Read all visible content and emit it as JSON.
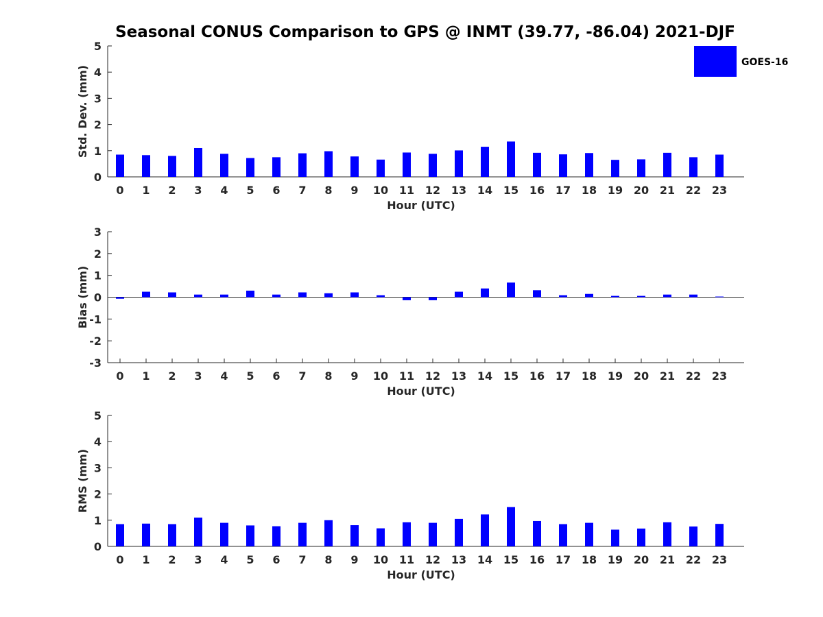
{
  "figure": {
    "title": "Seasonal CONUS Comparison to GPS @ INMT (39.77, -86.04) 2021-DJF"
  },
  "legend": {
    "label": "GOES-16",
    "color": "#0000ff"
  },
  "chart_data": [
    {
      "type": "bar",
      "xlabel": "Hour (UTC)",
      "ylabel": "Std. Dev. (mm)",
      "ylim": [
        0,
        5
      ],
      "yticks": [
        "0",
        "1",
        "2",
        "3",
        "4",
        "5"
      ],
      "categories": [
        "0",
        "1",
        "2",
        "3",
        "4",
        "5",
        "6",
        "7",
        "8",
        "9",
        "10",
        "11",
        "12",
        "13",
        "14",
        "15",
        "16",
        "17",
        "18",
        "19",
        "20",
        "21",
        "22",
        "23"
      ],
      "series": [
        {
          "name": "GOES-16",
          "color": "#0000ff",
          "values": [
            0.85,
            0.83,
            0.8,
            1.1,
            0.88,
            0.72,
            0.75,
            0.9,
            0.98,
            0.78,
            0.66,
            0.93,
            0.88,
            1.01,
            1.15,
            1.35,
            0.92,
            0.86,
            0.91,
            0.65,
            0.67,
            0.92,
            0.75,
            0.85
          ]
        }
      ],
      "grid": false,
      "legend": "top-right"
    },
    {
      "type": "bar",
      "xlabel": "Hour (UTC)",
      "ylabel": "Bias (mm)",
      "ylim": [
        -3,
        3
      ],
      "yticks": [
        "-3",
        "-2",
        "-1",
        "0",
        "1",
        "2",
        "3"
      ],
      "categories": [
        "0",
        "1",
        "2",
        "3",
        "4",
        "5",
        "6",
        "7",
        "8",
        "9",
        "10",
        "11",
        "12",
        "13",
        "14",
        "15",
        "16",
        "17",
        "18",
        "19",
        "20",
        "21",
        "22",
        "23"
      ],
      "series": [
        {
          "name": "GOES-16",
          "color": "#0000ff",
          "values": [
            -0.07,
            0.25,
            0.22,
            0.12,
            0.12,
            0.3,
            0.12,
            0.22,
            0.18,
            0.22,
            0.09,
            -0.14,
            -0.14,
            0.25,
            0.4,
            0.67,
            0.32,
            0.09,
            0.15,
            0.06,
            0.06,
            0.12,
            0.12,
            0.03
          ]
        }
      ],
      "grid": false
    },
    {
      "type": "bar",
      "xlabel": "Hour (UTC)",
      "ylabel": "RMS (mm)",
      "ylim": [
        0,
        5
      ],
      "yticks": [
        "0",
        "1",
        "2",
        "3",
        "4",
        "5"
      ],
      "categories": [
        "0",
        "1",
        "2",
        "3",
        "4",
        "5",
        "6",
        "7",
        "8",
        "9",
        "10",
        "11",
        "12",
        "13",
        "14",
        "15",
        "16",
        "17",
        "18",
        "19",
        "20",
        "21",
        "22",
        "23"
      ],
      "series": [
        {
          "name": "GOES-16",
          "color": "#0000ff",
          "values": [
            0.85,
            0.87,
            0.85,
            1.1,
            0.9,
            0.8,
            0.77,
            0.9,
            1.0,
            0.81,
            0.69,
            0.92,
            0.9,
            1.05,
            1.22,
            1.5,
            0.97,
            0.85,
            0.9,
            0.64,
            0.68,
            0.92,
            0.76,
            0.86
          ]
        }
      ],
      "grid": false
    }
  ]
}
